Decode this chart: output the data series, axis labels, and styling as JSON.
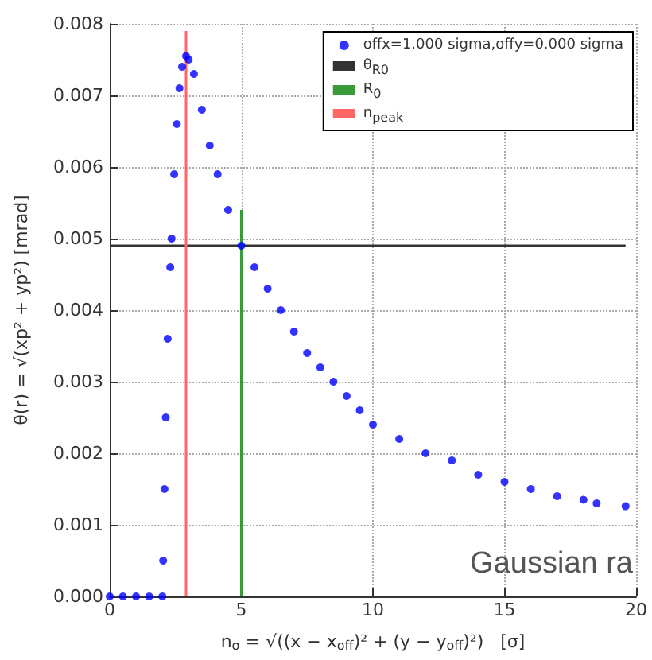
{
  "chart_data": {
    "type": "scatter",
    "xlabel": "n$_{σ}$ = √((x − x$_{off}$)² + (y − y$_{off}$)²)   [σ]",
    "ylabel": "θ(r) = √(xp² + yp²) [mrad]",
    "x": [
      0,
      0.5,
      1,
      1.5,
      2,
      2.03,
      2.08,
      2.13,
      2.2,
      2.3,
      2.35,
      2.45,
      2.55,
      2.65,
      2.75,
      2.9,
      3.0,
      3.2,
      3.5,
      3.8,
      4.1,
      4.5,
      5,
      5.5,
      6,
      6.5,
      7,
      7.5,
      8,
      8.5,
      9,
      9.5,
      10,
      11,
      12,
      13,
      14,
      15,
      16,
      17,
      18,
      18.5,
      19.6
    ],
    "series": [
      {
        "name": "offx=1.000 sigma,offy=0.000 sigma",
        "color": "#0000ff",
        "values": [
          0,
          0,
          0,
          0,
          0,
          0.0005,
          0.0015,
          0.0025,
          0.0036,
          0.0046,
          0.005,
          0.0059,
          0.0066,
          0.0071,
          0.0074,
          0.00755,
          0.0075,
          0.0073,
          0.0068,
          0.0063,
          0.0059,
          0.0054,
          0.0049,
          0.0046,
          0.0043,
          0.004,
          0.0037,
          0.0034,
          0.0032,
          0.003,
          0.0028,
          0.0026,
          0.0024,
          0.0022,
          0.002,
          0.0019,
          0.0017,
          0.0016,
          0.0015,
          0.0014,
          0.00135,
          0.0013,
          0.00126
        ]
      },
      {
        "name": "θ$_{R0}$",
        "type": "line",
        "marker": "none",
        "color": "#333333",
        "x": [
          0,
          19.6
        ],
        "values": [
          0.0049,
          0.0049
        ]
      },
      {
        "name": "R$_{0}$",
        "type": "line",
        "marker": "none",
        "color": "#3a9a3a",
        "x": [
          5,
          5
        ],
        "values": [
          0,
          0.0054
        ]
      },
      {
        "name": "n$_{peak}$",
        "type": "line",
        "marker": "none",
        "color": "#ff6666",
        "x": [
          2.9,
          2.9
        ],
        "values": [
          0,
          0.0079
        ]
      }
    ],
    "xlim": [
      0,
      20
    ],
    "xticks": [
      0,
      5,
      10,
      15,
      20
    ],
    "ylim": [
      0,
      0.008
    ],
    "yticks": [
      {
        "value": 0,
        "label": "0.000"
      },
      0.001,
      0.002,
      0.003,
      0.004,
      0.005,
      0.006,
      0.007,
      0.008
    ],
    "grid": true,
    "legend": "top right",
    "marker": "circle",
    "annotations": [
      "Gaussian ra"
    ]
  }
}
